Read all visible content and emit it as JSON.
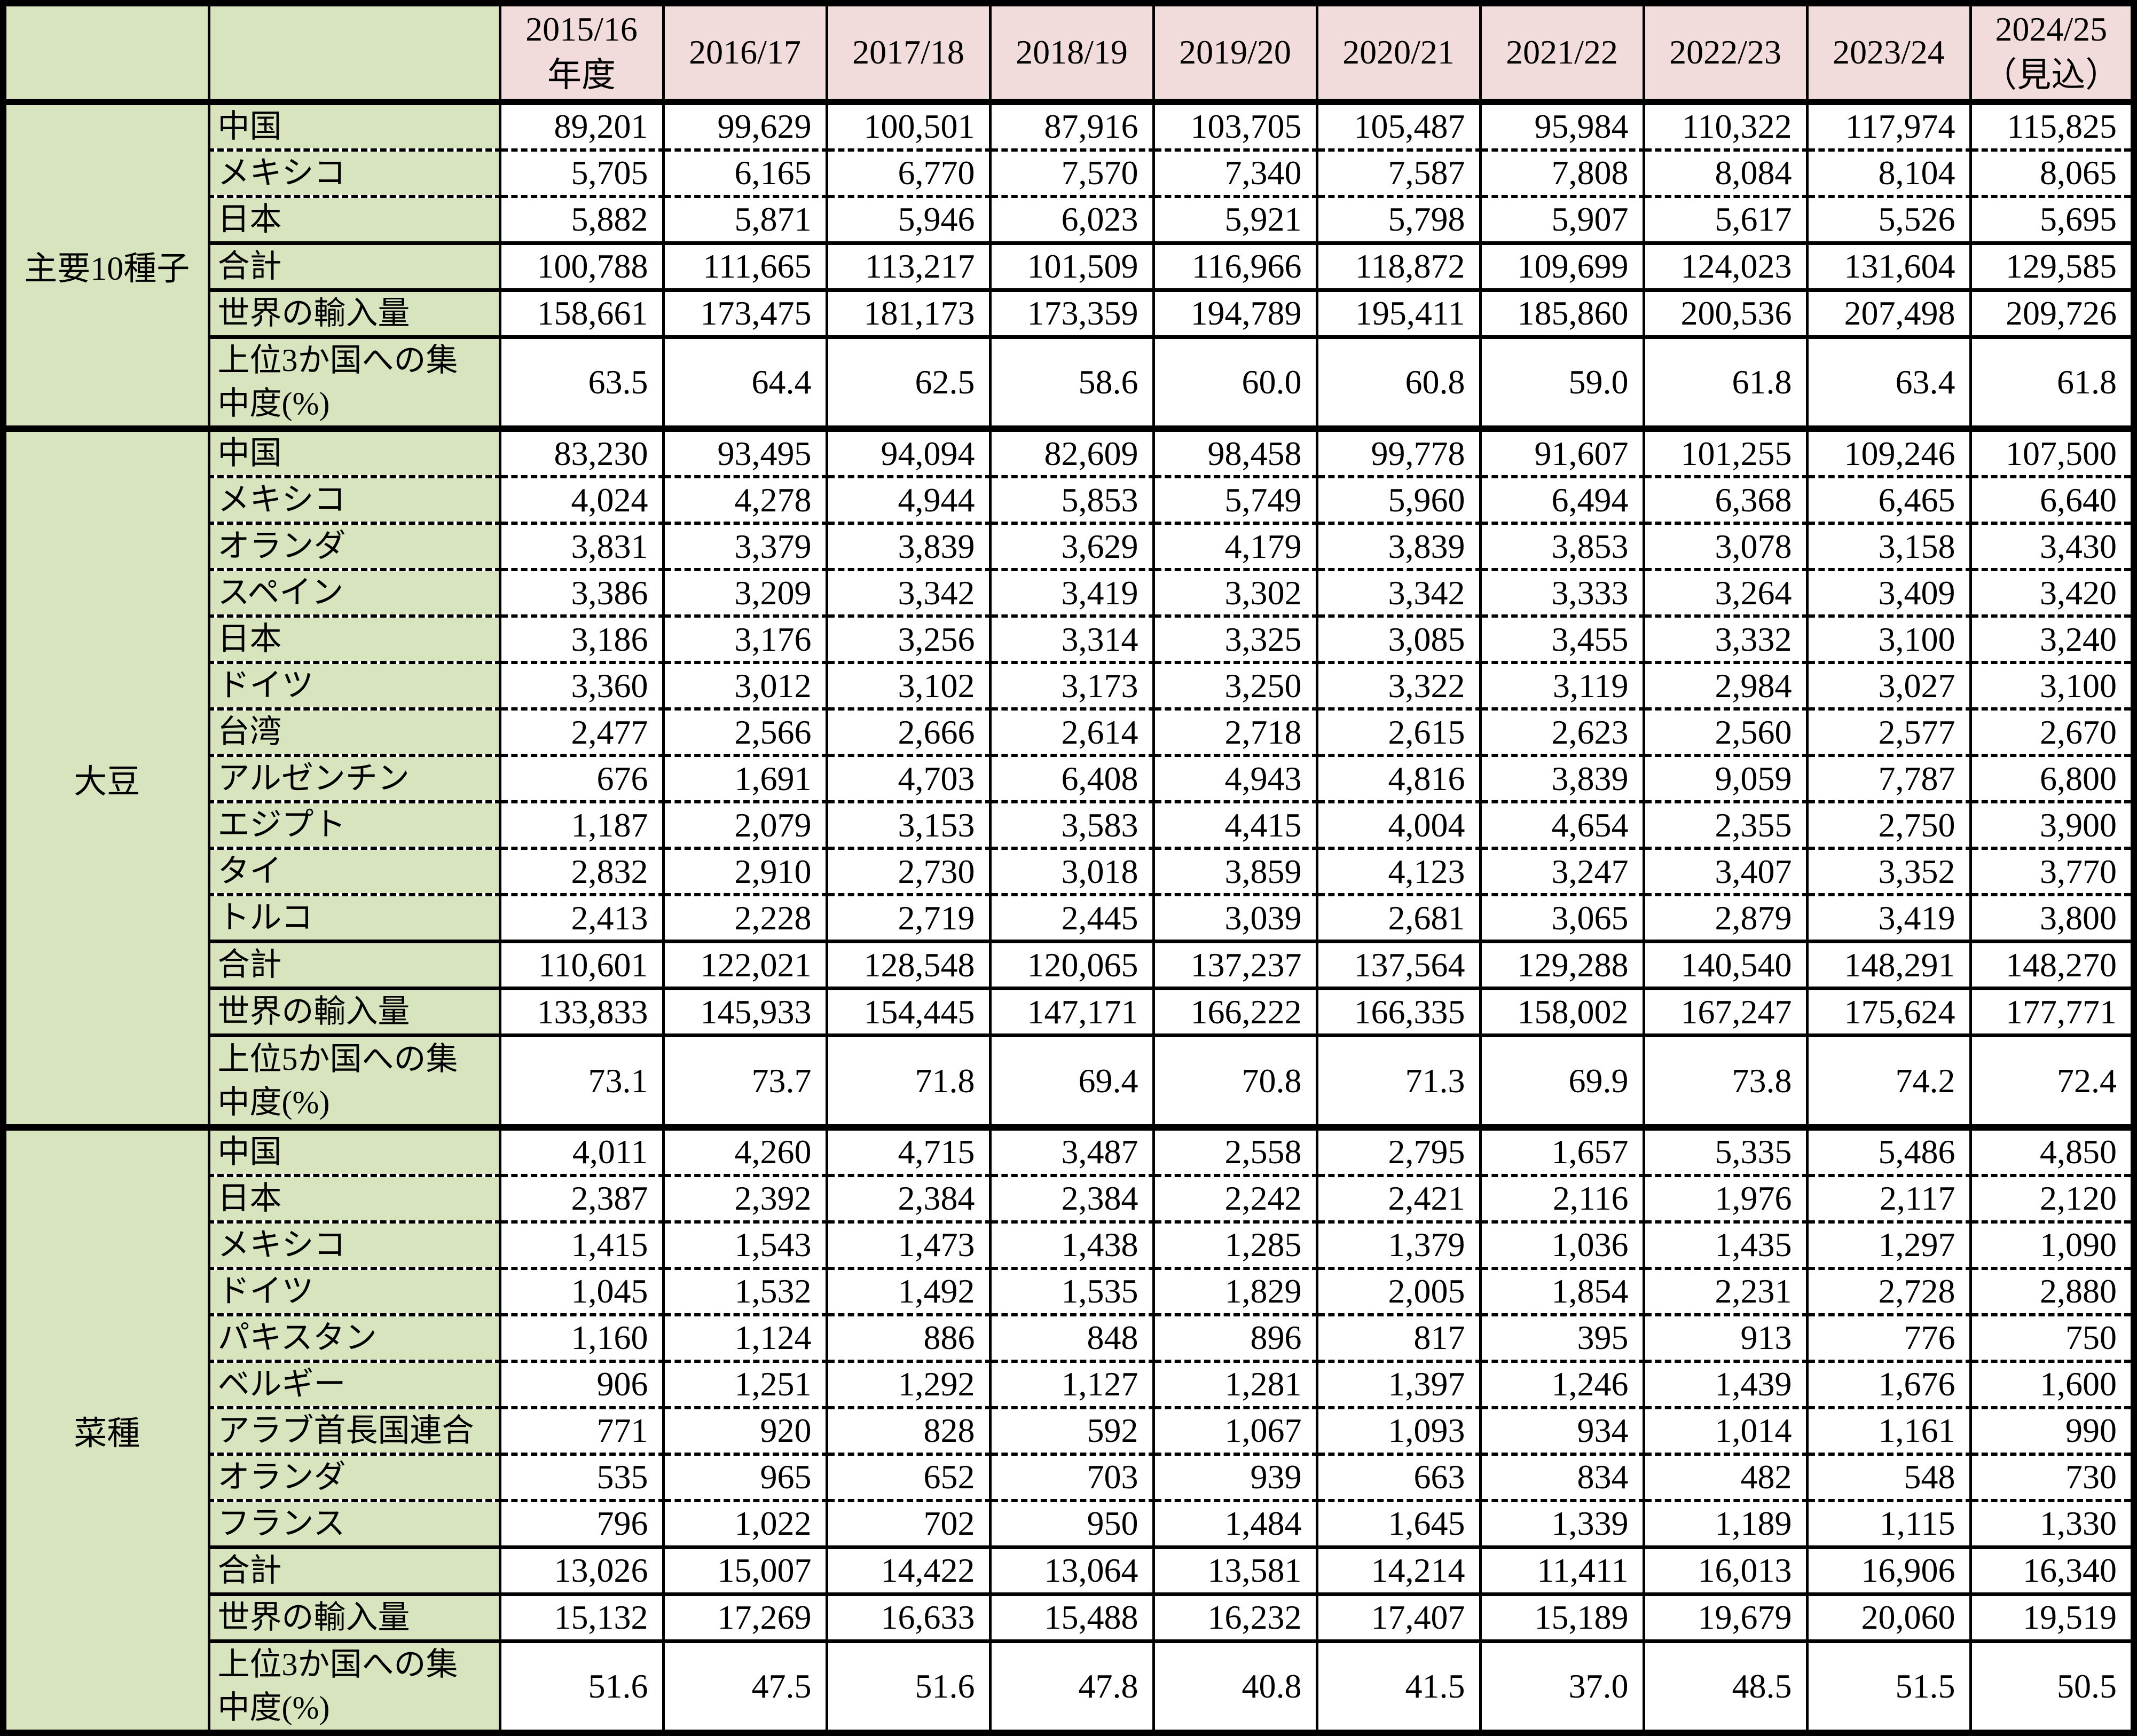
{
  "colors": {
    "header_bg": "#F2DCDB",
    "label_bg": "#D7E4BD",
    "cell_bg": "#FFFFFF",
    "border": "#000000"
  },
  "table": {
    "col_headers": [
      "2015/16\n年度",
      "2016/17",
      "2017/18",
      "2018/19",
      "2019/20",
      "2020/21",
      "2021/22",
      "2022/23",
      "2023/24",
      "2024/25\n（見込）"
    ],
    "groups": [
      {
        "label": "主要10種子",
        "rows": [
          {
            "label": "中国",
            "type": "country",
            "values": [
              "89,201",
              "99,629",
              "100,501",
              "87,916",
              "103,705",
              "105,487",
              "95,984",
              "110,322",
              "117,974",
              "115,825"
            ]
          },
          {
            "label": "メキシコ",
            "type": "country",
            "values": [
              "5,705",
              "6,165",
              "6,770",
              "7,570",
              "7,340",
              "7,587",
              "7,808",
              "8,084",
              "8,104",
              "8,065"
            ]
          },
          {
            "label": "日本",
            "type": "country",
            "values": [
              "5,882",
              "5,871",
              "5,946",
              "6,023",
              "5,921",
              "5,798",
              "5,907",
              "5,617",
              "5,526",
              "5,695"
            ]
          },
          {
            "label": "合計",
            "type": "total",
            "values": [
              "100,788",
              "111,665",
              "113,217",
              "101,509",
              "116,966",
              "118,872",
              "109,699",
              "124,023",
              "131,604",
              "129,585"
            ]
          },
          {
            "label": "世界の輸入量",
            "type": "world",
            "values": [
              "158,661",
              "173,475",
              "181,173",
              "173,359",
              "194,789",
              "195,411",
              "185,860",
              "200,536",
              "207,498",
              "209,726"
            ]
          },
          {
            "label": "上位3か国への集\n中度(%)",
            "type": "conc",
            "values": [
              "63.5",
              "64.4",
              "62.5",
              "58.6",
              "60.0",
              "60.8",
              "59.0",
              "61.8",
              "63.4",
              "61.8"
            ]
          }
        ]
      },
      {
        "label": "大豆",
        "rows": [
          {
            "label": "中国",
            "type": "country",
            "values": [
              "83,230",
              "93,495",
              "94,094",
              "82,609",
              "98,458",
              "99,778",
              "91,607",
              "101,255",
              "109,246",
              "107,500"
            ]
          },
          {
            "label": "メキシコ",
            "type": "country",
            "values": [
              "4,024",
              "4,278",
              "4,944",
              "5,853",
              "5,749",
              "5,960",
              "6,494",
              "6,368",
              "6,465",
              "6,640"
            ]
          },
          {
            "label": "オランダ",
            "type": "country",
            "values": [
              "3,831",
              "3,379",
              "3,839",
              "3,629",
              "4,179",
              "3,839",
              "3,853",
              "3,078",
              "3,158",
              "3,430"
            ]
          },
          {
            "label": "スペイン",
            "type": "country",
            "values": [
              "3,386",
              "3,209",
              "3,342",
              "3,419",
              "3,302",
              "3,342",
              "3,333",
              "3,264",
              "3,409",
              "3,420"
            ]
          },
          {
            "label": "日本",
            "type": "country",
            "values": [
              "3,186",
              "3,176",
              "3,256",
              "3,314",
              "3,325",
              "3,085",
              "3,455",
              "3,332",
              "3,100",
              "3,240"
            ]
          },
          {
            "label": "ドイツ",
            "type": "country",
            "values": [
              "3,360",
              "3,012",
              "3,102",
              "3,173",
              "3,250",
              "3,322",
              "3,119",
              "2,984",
              "3,027",
              "3,100"
            ]
          },
          {
            "label": "台湾",
            "type": "country",
            "values": [
              "2,477",
              "2,566",
              "2,666",
              "2,614",
              "2,718",
              "2,615",
              "2,623",
              "2,560",
              "2,577",
              "2,670"
            ]
          },
          {
            "label": "アルゼンチン",
            "type": "country",
            "values": [
              "676",
              "1,691",
              "4,703",
              "6,408",
              "4,943",
              "4,816",
              "3,839",
              "9,059",
              "7,787",
              "6,800"
            ]
          },
          {
            "label": "エジプト",
            "type": "country",
            "values": [
              "1,187",
              "2,079",
              "3,153",
              "3,583",
              "4,415",
              "4,004",
              "4,654",
              "2,355",
              "2,750",
              "3,900"
            ]
          },
          {
            "label": "タイ",
            "type": "country",
            "values": [
              "2,832",
              "2,910",
              "2,730",
              "3,018",
              "3,859",
              "4,123",
              "3,247",
              "3,407",
              "3,352",
              "3,770"
            ]
          },
          {
            "label": "トルコ",
            "type": "country",
            "values": [
              "2,413",
              "2,228",
              "2,719",
              "2,445",
              "3,039",
              "2,681",
              "3,065",
              "2,879",
              "3,419",
              "3,800"
            ]
          },
          {
            "label": "合計",
            "type": "total",
            "values": [
              "110,601",
              "122,021",
              "128,548",
              "120,065",
              "137,237",
              "137,564",
              "129,288",
              "140,540",
              "148,291",
              "148,270"
            ]
          },
          {
            "label": "世界の輸入量",
            "type": "world",
            "values": [
              "133,833",
              "145,933",
              "154,445",
              "147,171",
              "166,222",
              "166,335",
              "158,002",
              "167,247",
              "175,624",
              "177,771"
            ]
          },
          {
            "label": "上位5か国への集\n中度(%)",
            "type": "conc",
            "values": [
              "73.1",
              "73.7",
              "71.8",
              "69.4",
              "70.8",
              "71.3",
              "69.9",
              "73.8",
              "74.2",
              "72.4"
            ]
          }
        ]
      },
      {
        "label": "菜種",
        "rows": [
          {
            "label": "中国",
            "type": "country",
            "values": [
              "4,011",
              "4,260",
              "4,715",
              "3,487",
              "2,558",
              "2,795",
              "1,657",
              "5,335",
              "5,486",
              "4,850"
            ]
          },
          {
            "label": "日本",
            "type": "country",
            "values": [
              "2,387",
              "2,392",
              "2,384",
              "2,384",
              "2,242",
              "2,421",
              "2,116",
              "1,976",
              "2,117",
              "2,120"
            ]
          },
          {
            "label": "メキシコ",
            "type": "country",
            "values": [
              "1,415",
              "1,543",
              "1,473",
              "1,438",
              "1,285",
              "1,379",
              "1,036",
              "1,435",
              "1,297",
              "1,090"
            ]
          },
          {
            "label": "ドイツ",
            "type": "country",
            "values": [
              "1,045",
              "1,532",
              "1,492",
              "1,535",
              "1,829",
              "2,005",
              "1,854",
              "2,231",
              "2,728",
              "2,880"
            ]
          },
          {
            "label": "パキスタン",
            "type": "country",
            "values": [
              "1,160",
              "1,124",
              "886",
              "848",
              "896",
              "817",
              "395",
              "913",
              "776",
              "750"
            ]
          },
          {
            "label": "ベルギー",
            "type": "country",
            "values": [
              "906",
              "1,251",
              "1,292",
              "1,127",
              "1,281",
              "1,397",
              "1,246",
              "1,439",
              "1,676",
              "1,600"
            ]
          },
          {
            "label": "アラブ首長国連合",
            "type": "country",
            "values": [
              "771",
              "920",
              "828",
              "592",
              "1,067",
              "1,093",
              "934",
              "1,014",
              "1,161",
              "990"
            ]
          },
          {
            "label": "オランダ",
            "type": "country",
            "values": [
              "535",
              "965",
              "652",
              "703",
              "939",
              "663",
              "834",
              "482",
              "548",
              "730"
            ]
          },
          {
            "label": "フランス",
            "type": "country",
            "values": [
              "796",
              "1,022",
              "702",
              "950",
              "1,484",
              "1,645",
              "1,339",
              "1,189",
              "1,115",
              "1,330"
            ]
          },
          {
            "label": "合計",
            "type": "total",
            "values": [
              "13,026",
              "15,007",
              "14,422",
              "13,064",
              "13,581",
              "14,214",
              "11,411",
              "16,013",
              "16,906",
              "16,340"
            ]
          },
          {
            "label": "世界の輸入量",
            "type": "world",
            "values": [
              "15,132",
              "17,269",
              "16,633",
              "15,488",
              "16,232",
              "17,407",
              "15,189",
              "19,679",
              "20,060",
              "19,519"
            ]
          },
          {
            "label": "上位3か国への集\n中度(%)",
            "type": "conc",
            "values": [
              "51.6",
              "47.5",
              "51.6",
              "47.8",
              "40.8",
              "41.5",
              "37.0",
              "48.5",
              "51.5",
              "50.5"
            ]
          }
        ]
      }
    ]
  }
}
